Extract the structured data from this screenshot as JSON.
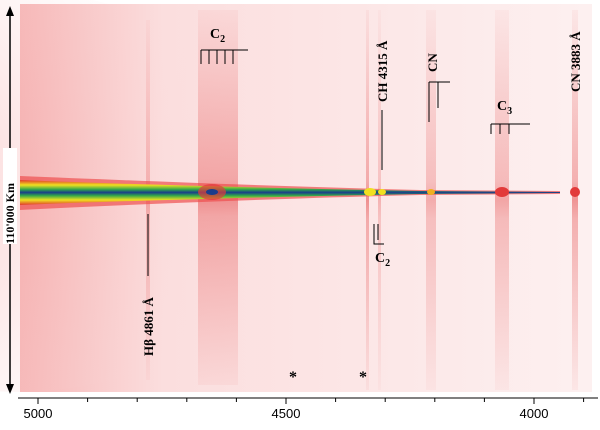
{
  "figure": {
    "scale_label": "110'000 Km",
    "axis_ticks": [
      "5000",
      "4500",
      "4000"
    ],
    "star_marker": "*",
    "labels": {
      "c2_top_main": "C",
      "c2_top_sub": "2",
      "ch": "CH 4315 Å",
      "cn_top": "CN",
      "c3_main": "C",
      "c3_sub": "3",
      "cn_right": "CN 3883 Å",
      "c2_mid_main": "C",
      "c2_mid_sub": "2",
      "hbeta": "Hβ 4861 Å"
    },
    "colors": {
      "background": "#fbe9e9",
      "spectrum_core": "#1a3c8c",
      "spectrum_mid": "#2fa64a",
      "spectrum_outer": "#f0e020",
      "emission_red": "#e23a3a",
      "ink": "#000000"
    }
  }
}
